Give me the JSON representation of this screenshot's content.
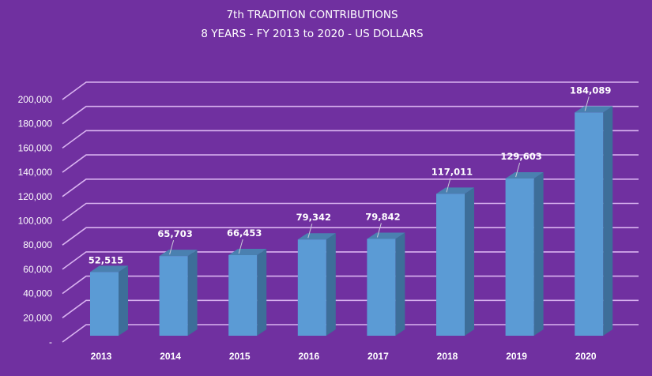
{
  "chart_data": {
    "type": "bar",
    "style": "3d-column",
    "title": "7th TRADITION CONTRIBUTIONS",
    "subtitle": "8 YEARS - FY 2013 to 2020 - US DOLLARS",
    "xlabel": "",
    "ylabel": "",
    "categories": [
      "2013",
      "2014",
      "2015",
      "2016",
      "2017",
      "2018",
      "2019",
      "2020"
    ],
    "values": [
      52515,
      65703,
      66453,
      79342,
      79842,
      117011,
      129603,
      184089
    ],
    "data_labels": [
      "52,515",
      "65,703",
      "66,453",
      "79,342",
      "79,842",
      "117,011",
      "129,603",
      "184,089"
    ],
    "ylim": [
      0,
      200000
    ],
    "yticks": [
      0,
      20000,
      40000,
      60000,
      80000,
      100000,
      120000,
      140000,
      160000,
      180000,
      200000
    ],
    "ytick_labels": [
      "-",
      "20,000",
      "40,000",
      "60,000",
      "80,000",
      "100,000",
      "120,000",
      "140,000",
      "160,000",
      "180,000",
      "200,000"
    ],
    "grid": true,
    "legend": "none",
    "colors": {
      "background": "#7030a0",
      "gridline": "#d9b3f0",
      "bar_front": "#5b9bd5",
      "bar_side": "#3d6e99",
      "bar_top": "#4a80b0",
      "text": "#ffffff"
    }
  }
}
